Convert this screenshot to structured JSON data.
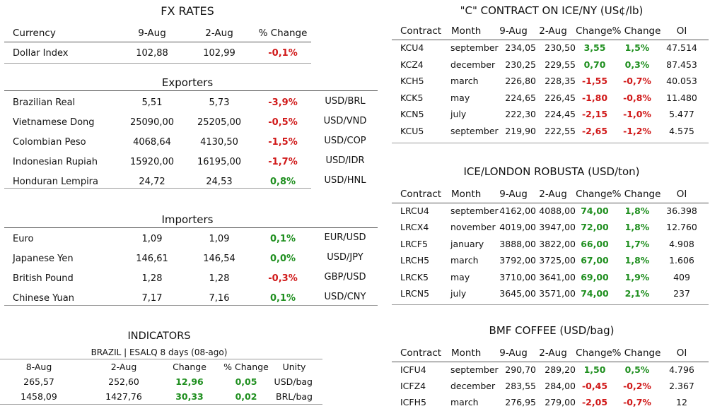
{
  "fx": {
    "title": "FX RATES",
    "headers": [
      "Currency",
      "9-Aug",
      "2-Aug",
      "% Change"
    ],
    "dollar_index": {
      "name": "Dollar Index",
      "v1": "102,88",
      "v2": "102,99",
      "chg": "-0,1%"
    },
    "exporters_title": "Exporters",
    "exporters": [
      {
        "name": "Brazilian Real",
        "v1": "5,51",
        "v2": "5,73",
        "chg": "-3,9%",
        "pair": "USD/BRL"
      },
      {
        "name": "Vietnamese Dong",
        "v1": "25090,00",
        "v2": "25205,00",
        "chg": "-0,5%",
        "pair": "USD/VND"
      },
      {
        "name": "Colombian Peso",
        "v1": "4068,64",
        "v2": "4130,50",
        "chg": "-1,5%",
        "pair": "USD/COP"
      },
      {
        "name": "Indonesian Rupiah",
        "v1": "15920,00",
        "v2": "16195,00",
        "chg": "-1,7%",
        "pair": "USD/IDR"
      },
      {
        "name": "Honduran Lempira",
        "v1": "24,72",
        "v2": "24,53",
        "chg": "0,8%",
        "pair": "USD/HNL"
      }
    ],
    "importers_title": "Importers",
    "importers": [
      {
        "name": "Euro",
        "v1": "1,09",
        "v2": "1,09",
        "chg": "0,1%",
        "pair": "EUR/USD"
      },
      {
        "name": "Japanese Yen",
        "v1": "146,61",
        "v2": "146,54",
        "chg": "0,0%",
        "pair": "USD/JPY"
      },
      {
        "name": "British Pound",
        "v1": "1,28",
        "v2": "1,28",
        "chg": "-0,3%",
        "pair": "GBP/USD"
      },
      {
        "name": "Chinese Yuan",
        "v1": "7,17",
        "v2": "7,16",
        "chg": "0,1%",
        "pair": "USD/CNY"
      }
    ]
  },
  "indicators": {
    "title": "INDICATORS",
    "subtitle": "BRAZIL | ESALQ 8 days (08-ago)",
    "headers": [
      "8-Aug",
      "2-Aug",
      "Change",
      "% Change",
      "Unity"
    ],
    "rows": [
      [
        "265,57",
        "252,60",
        "12,96",
        "0,05",
        "USD/bag"
      ],
      [
        "1458,09",
        "1427,76",
        "30,33",
        "0,02",
        "BRL/bag"
      ]
    ]
  },
  "headers_contract": [
    "Contract",
    "Month",
    "9-Aug",
    "2-Aug",
    "Change",
    "% Change",
    "OI"
  ],
  "c_contract": {
    "title": "\"C\" CONTRACT ON ICE/NY (US¢/lb)",
    "rows": [
      [
        "KCU4",
        "september",
        "234,05",
        "230,50",
        "3,55",
        "1,5%",
        "47.514"
      ],
      [
        "KCZ4",
        "december",
        "230,25",
        "229,55",
        "0,70",
        "0,3%",
        "87.453"
      ],
      [
        "KCH5",
        "march",
        "226,80",
        "228,35",
        "-1,55",
        "-0,7%",
        "40.053"
      ],
      [
        "KCK5",
        "may",
        "224,65",
        "226,45",
        "-1,80",
        "-0,8%",
        "11.480"
      ],
      [
        "KCN5",
        "july",
        "222,30",
        "224,45",
        "-2,15",
        "-1,0%",
        "5.477"
      ],
      [
        "KCU5",
        "september",
        "219,90",
        "222,55",
        "-2,65",
        "-1,2%",
        "4.575"
      ]
    ]
  },
  "robusta": {
    "title": "ICE/LONDON ROBUSTA (USD/ton)",
    "rows": [
      [
        "LRCU4",
        "september",
        "4162,00",
        "4088,00",
        "74,00",
        "1,8%",
        "36.398"
      ],
      [
        "LRCX4",
        "november",
        "4019,00",
        "3947,00",
        "72,00",
        "1,8%",
        "12.760"
      ],
      [
        "LRCF5",
        "january",
        "3888,00",
        "3822,00",
        "66,00",
        "1,7%",
        "4.908"
      ],
      [
        "LRCH5",
        "march",
        "3792,00",
        "3725,00",
        "67,00",
        "1,8%",
        "1.606"
      ],
      [
        "LRCK5",
        "may",
        "3710,00",
        "3641,00",
        "69,00",
        "1,9%",
        "409"
      ],
      [
        "LRCN5",
        "july",
        "3645,00",
        "3571,00",
        "74,00",
        "2,1%",
        "237"
      ]
    ]
  },
  "bmf": {
    "title": "BMF COFFEE (USD/bag)",
    "rows": [
      [
        "ICFU4",
        "september",
        "290,70",
        "289,20",
        "1,50",
        "0,5%",
        "4.796"
      ],
      [
        "ICFZ4",
        "december",
        "283,55",
        "284,00",
        "-0,45",
        "-0,2%",
        "2.367"
      ],
      [
        "ICFH5",
        "march",
        "276,95",
        "279,00",
        "-2,05",
        "-0,7%",
        "12"
      ]
    ]
  },
  "colors": {
    "positive": "#1f8f1f",
    "negative": "#d01818",
    "rule": "#9a9a9a"
  }
}
